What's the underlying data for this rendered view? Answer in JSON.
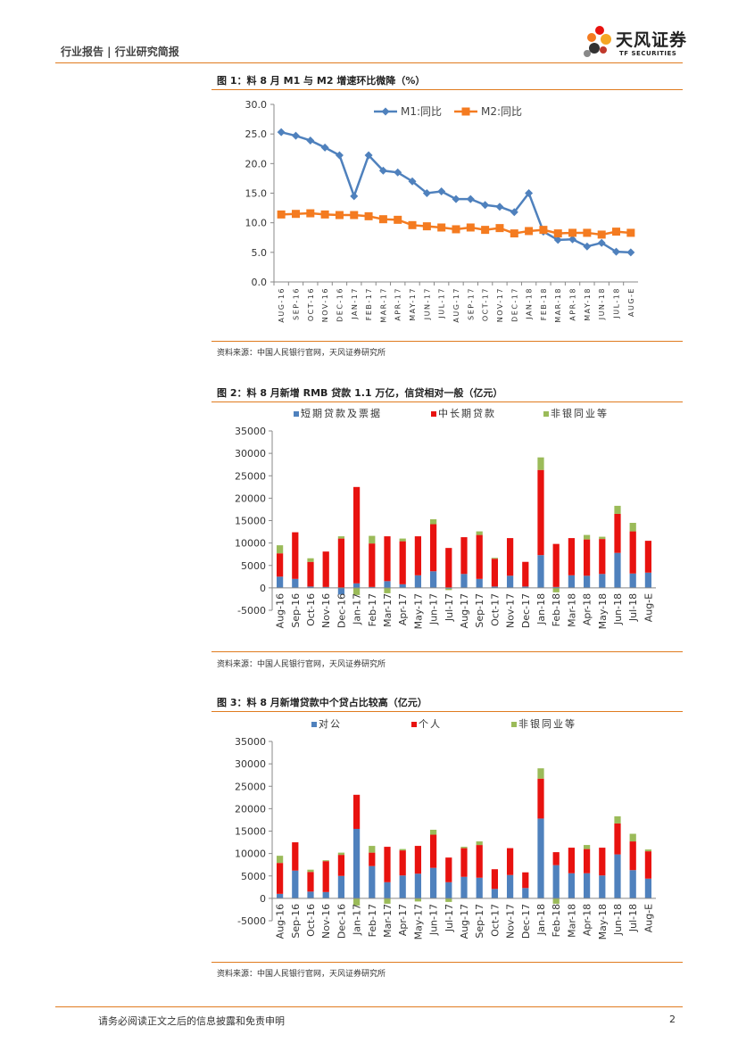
{
  "header": {
    "left": "行业报告 | 行业研究简报"
  },
  "logo": {
    "main": "天风证券",
    "sub": "TF SECURITIES"
  },
  "colors": {
    "accent": "#e07b1f",
    "blue": "#4f81bd",
    "orange": "#f47b20",
    "red": "#e8120f",
    "green": "#9bbb59"
  },
  "figures": [
    {
      "title": "图 1：料 8 月 M1 与 M2 增速环比微降（%）",
      "source": "资料来源：中国人民银行官网，天风证券研究所"
    },
    {
      "title": "图 2：料 8 月新增 RMB 贷款 1.1 万亿，信贷相对一般（亿元）",
      "source": "资料来源：中国人民银行官网，天风证券研究所"
    },
    {
      "title": "图 3：料 8 月新增贷款中个贷占比较高（亿元）",
      "source": "资料来源：中国人民银行官网，天风证券研究所"
    }
  ],
  "footer": {
    "text": "请务必阅读正文之后的信息披露和免责申明",
    "page": "2"
  },
  "chart_data": [
    {
      "type": "line",
      "title": "图 1：料 8 月 M1 与 M2 增速环比微降（%）",
      "categories": [
        "AUG-16",
        "SEP-16",
        "OCT-16",
        "NOV-16",
        "DEC-16",
        "JAN-17",
        "FEB-17",
        "MAR-17",
        "APR-17",
        "MAY-17",
        "JUN-17",
        "JUL-17",
        "AUG-17",
        "SEP-17",
        "OCT-17",
        "NOV-17",
        "DEC-17",
        "JAN-18",
        "FEB-18",
        "MAR-18",
        "APR-18",
        "MAY-18",
        "JUN-18",
        "JUL-18",
        "AUG-E"
      ],
      "ylim": [
        0,
        30
      ],
      "yticks": [
        "0.0",
        "5.0",
        "10.0",
        "15.0",
        "20.0",
        "25.0",
        "30.0"
      ],
      "series": [
        {
          "name": "M1:同比",
          "color": "#4f81bd",
          "marker": "diamond",
          "values": [
            25.3,
            24.7,
            23.9,
            22.7,
            21.4,
            14.5,
            21.4,
            18.8,
            18.5,
            17.0,
            15.0,
            15.3,
            14.0,
            14.0,
            13.0,
            12.7,
            11.8,
            15.0,
            8.5,
            7.1,
            7.2,
            6.0,
            6.6,
            5.1,
            5.0
          ]
        },
        {
          "name": "M2:同比",
          "color": "#f47b20",
          "marker": "square",
          "values": [
            11.4,
            11.5,
            11.6,
            11.4,
            11.3,
            11.3,
            11.1,
            10.6,
            10.5,
            9.6,
            9.4,
            9.2,
            8.9,
            9.2,
            8.8,
            9.1,
            8.2,
            8.6,
            8.8,
            8.2,
            8.3,
            8.3,
            8.0,
            8.5,
            8.3
          ]
        }
      ]
    },
    {
      "type": "bar",
      "stacked": true,
      "title": "图 2：料 8 月新增 RMB 贷款 1.1 万亿，信贷相对一般（亿元）",
      "categories": [
        "Aug-16",
        "Sep-16",
        "Oct-16",
        "Nov-16",
        "Dec-16",
        "Jan-17",
        "Feb-17",
        "Mar-17",
        "Apr-17",
        "May-17",
        "Jun-17",
        "Jul-17",
        "Aug-17",
        "Sep-17",
        "Oct-17",
        "Nov-17",
        "Dec-17",
        "Jan-18",
        "Feb-18",
        "Mar-18",
        "Apr-18",
        "May-18",
        "Jun-18",
        "Jul-18",
        "Aug-E"
      ],
      "ylim": [
        -5000,
        35000
      ],
      "yticks": [
        "-5000",
        "0",
        "5000",
        "10000",
        "15000",
        "20000",
        "25000",
        "30000",
        "35000"
      ],
      "series": [
        {
          "name": "短期贷款及票据",
          "color": "#4f81bd",
          "values": [
            2500,
            2000,
            300,
            200,
            -1500,
            1000,
            200,
            1500,
            800,
            2800,
            3700,
            -200,
            3100,
            2000,
            300,
            2700,
            300,
            7300,
            200,
            2800,
            2700,
            3100,
            7800,
            3200,
            3400
          ]
        },
        {
          "name": "中长期贷款",
          "color": "#e8120f",
          "values": [
            5200,
            10400,
            5500,
            7900,
            11000,
            21500,
            9700,
            10000,
            9600,
            8700,
            10500,
            8900,
            8200,
            9800,
            6200,
            8400,
            5500,
            19000,
            9600,
            8300,
            8100,
            7800,
            8700,
            9400,
            7100
          ]
        },
        {
          "name": "非银同业等",
          "color": "#9bbb59",
          "values": [
            1800,
            0,
            800,
            0,
            500,
            -1600,
            1700,
            -1200,
            600,
            0,
            1100,
            -300,
            0,
            800,
            200,
            0,
            0,
            2800,
            -1000,
            0,
            1000,
            500,
            1800,
            1900,
            0
          ]
        }
      ]
    },
    {
      "type": "bar",
      "stacked": true,
      "title": "图 3：料 8 月新增贷款中个贷占比较高（亿元）",
      "categories": [
        "Aug-16",
        "Sep-16",
        "Oct-16",
        "Nov-16",
        "Dec-16",
        "Jan-17",
        "Feb-17",
        "Mar-17",
        "Apr-17",
        "May-17",
        "Jun-17",
        "Jul-17",
        "Aug-17",
        "Sep-17",
        "Oct-17",
        "Nov-17",
        "Dec-17",
        "Jan-18",
        "Feb-18",
        "Mar-18",
        "Apr-18",
        "May-18",
        "Jun-18",
        "Jul-18",
        "Aug-E"
      ],
      "ylim": [
        -5000,
        35000
      ],
      "yticks": [
        "-5000",
        "0",
        "5000",
        "10000",
        "15000",
        "20000",
        "25000",
        "30000",
        "35000"
      ],
      "series": [
        {
          "name": "对公",
          "color": "#4f81bd",
          "values": [
            1000,
            6200,
            1500,
            1400,
            5000,
            15500,
            7200,
            3600,
            5100,
            5500,
            6800,
            3600,
            4800,
            4600,
            2100,
            5200,
            2300,
            17800,
            7400,
            5600,
            5600,
            5100,
            9800,
            6300,
            4400
          ]
        },
        {
          "name": "个人",
          "color": "#e8120f",
          "values": [
            6900,
            6300,
            4400,
            6900,
            4700,
            7600,
            3000,
            7900,
            5600,
            6200,
            7400,
            5500,
            6400,
            7300,
            4400,
            6000,
            3500,
            8900,
            2900,
            5700,
            5400,
            6200,
            6900,
            6400,
            6100
          ]
        },
        {
          "name": "非银同业等",
          "color": "#9bbb59",
          "values": [
            1600,
            0,
            500,
            200,
            500,
            -1600,
            1500,
            -1200,
            300,
            -700,
            1100,
            -800,
            300,
            800,
            0,
            0,
            0,
            2300,
            -1200,
            0,
            900,
            0,
            1600,
            1700,
            400
          ]
        }
      ]
    }
  ]
}
